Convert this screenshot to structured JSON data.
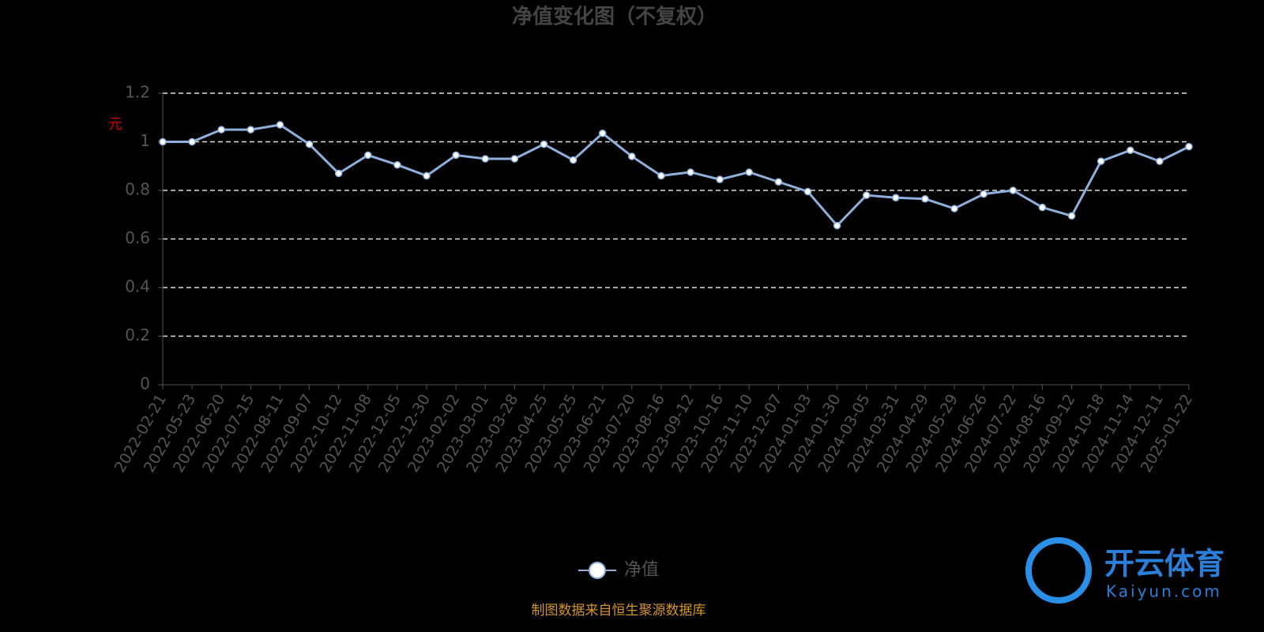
{
  "chart_data": {
    "type": "line",
    "title": "净值变化图（不复权）",
    "y_label": "元",
    "categories": [
      "2022-02-21",
      "2022-05-23",
      "2022-06-20",
      "2022-07-15",
      "2022-08-11",
      "2022-09-07",
      "2022-10-12",
      "2022-11-08",
      "2022-12-05",
      "2022-12-30",
      "2023-02-02",
      "2023-03-01",
      "2023-03-28",
      "2023-04-25",
      "2023-05-25",
      "2023-06-21",
      "2023-07-20",
      "2023-08-16",
      "2023-09-12",
      "2023-10-16",
      "2023-11-10",
      "2023-12-07",
      "2024-01-03",
      "2024-01-30",
      "2024-03-05",
      "2024-03-31",
      "2024-04-29",
      "2024-05-29",
      "2024-06-26",
      "2024-07-22",
      "2024-08-16",
      "2024-09-12",
      "2024-10-18",
      "2024-11-14",
      "2024-12-11",
      "2025-01-22"
    ],
    "series": [
      {
        "name": "净值",
        "color": "#8fb0dc",
        "values": [
          1.0,
          1.0,
          1.05,
          1.05,
          1.07,
          0.99,
          0.87,
          0.945,
          0.905,
          0.86,
          0.945,
          0.93,
          0.93,
          0.99,
          0.925,
          1.035,
          0.94,
          0.86,
          0.875,
          0.845,
          0.875,
          0.835,
          0.795,
          0.655,
          0.78,
          0.77,
          0.765,
          0.725,
          0.785,
          0.8,
          0.73,
          0.695,
          0.92,
          0.965,
          0.92,
          0.98
        ]
      }
    ],
    "ylim": [
      0,
      1.2
    ],
    "yticks": [
      0,
      0.2,
      0.4,
      0.6,
      0.8,
      1,
      1.2
    ],
    "grid": true,
    "source": "制图数据来自恒生聚源数据库",
    "watermark": {
      "brand": "开云体育",
      "site": "Kaiyun.com"
    }
  }
}
